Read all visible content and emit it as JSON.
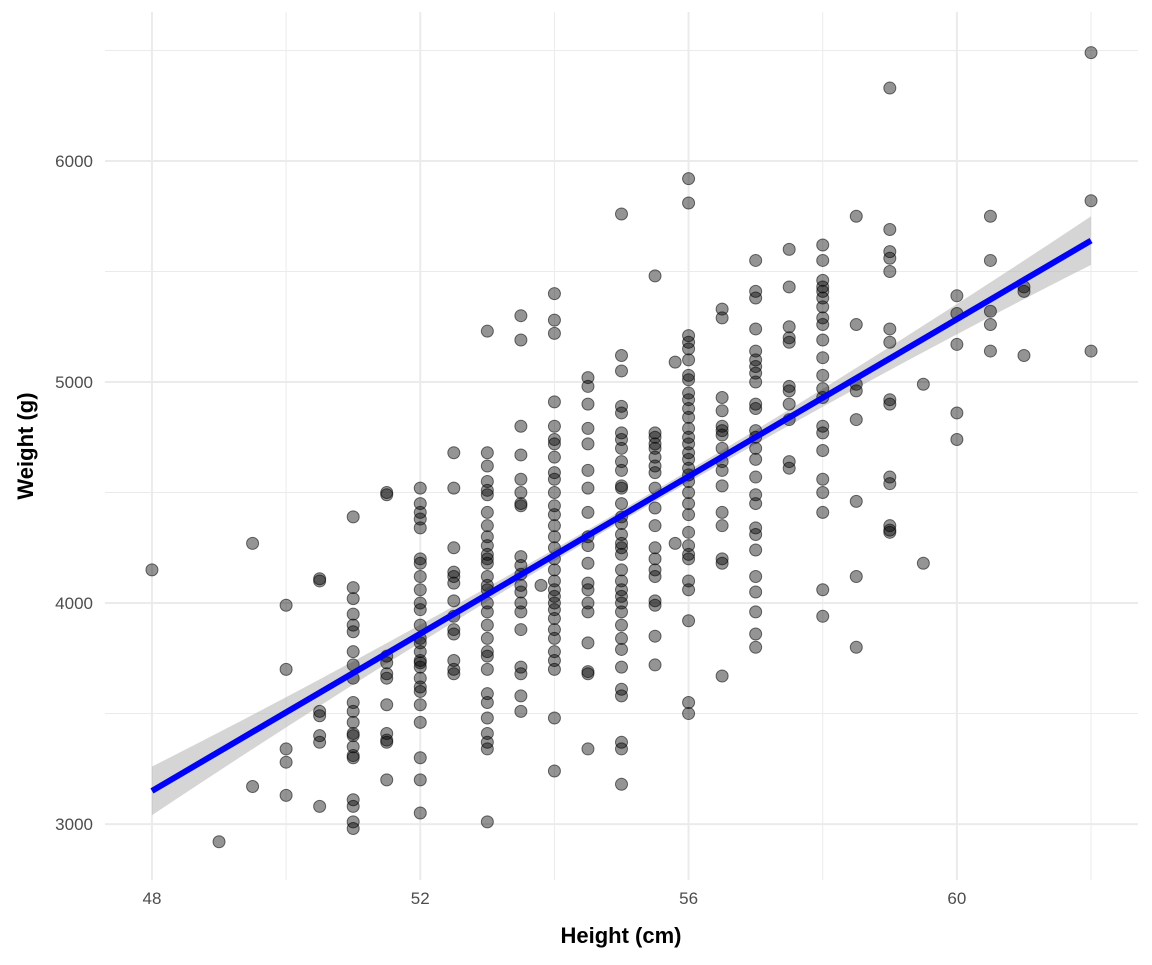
{
  "chart_data": {
    "type": "scatter",
    "title": "",
    "xlabel": "Height (cm)",
    "ylabel": "Weight (g)",
    "xlim": [
      47.3,
      62.7
    ],
    "ylim": [
      2747,
      6674
    ],
    "x_ticks": [
      48,
      52,
      56,
      60
    ],
    "x_tick_labels": [
      "48",
      "52",
      "56",
      "60"
    ],
    "x_minor": [
      50,
      54,
      58,
      62
    ],
    "y_ticks": [
      3000,
      4000,
      5000,
      6000
    ],
    "y_tick_labels": [
      "3000",
      "4000",
      "5000",
      "6000"
    ],
    "y_minor": [
      3500,
      4500,
      5500,
      6500
    ],
    "grid": true,
    "legend": "none",
    "colors": {
      "point_fill": "#000000",
      "fit_line": "#0000ff",
      "ci_band": "#b3b3b3",
      "grid": "#ebebeb"
    },
    "fit": {
      "method": "linear",
      "x": [
        48,
        62
      ],
      "y": [
        3150,
        5640
      ],
      "ci_halfwidth_at_ends": 110,
      "ci_halfwidth_at_center": 25,
      "x_center": 55
    },
    "columns": [
      {
        "x": 48,
        "y": [
          4150
        ]
      },
      {
        "x": 49,
        "y": [
          2920
        ]
      },
      {
        "x": 49.5,
        "y": [
          4270,
          3170
        ]
      },
      {
        "x": 50,
        "y": [
          3990,
          3700,
          3340,
          3280,
          3130
        ]
      },
      {
        "x": 50.5,
        "y": [
          4110,
          4100,
          3510,
          3490,
          3400,
          3370,
          3080
        ]
      },
      {
        "x": 51,
        "y": [
          4390,
          4070,
          4020,
          3950,
          3900,
          3870,
          3780,
          3720,
          3660,
          3550,
          3510,
          3460,
          3410,
          3400,
          3350,
          3310,
          3300,
          3110,
          3080,
          3010,
          2980
        ]
      },
      {
        "x": 51.5,
        "y": [
          4500,
          4490,
          3760,
          3730,
          3680,
          3660,
          3540,
          3410,
          3380,
          3370,
          3200
        ]
      },
      {
        "x": 52,
        "y": [
          4520,
          4450,
          4410,
          4380,
          4340,
          4200,
          4180,
          4120,
          4060,
          4000,
          3970,
          3900,
          3840,
          3820,
          3780,
          3740,
          3730,
          3710,
          3660,
          3620,
          3600,
          3540,
          3460,
          3300,
          3200,
          3050
        ]
      },
      {
        "x": 52.5,
        "y": [
          4680,
          4520,
          4250,
          4140,
          4120,
          4090,
          4010,
          3940,
          3880,
          3860,
          3740,
          3700,
          3680
        ]
      },
      {
        "x": 53,
        "y": [
          5230,
          4680,
          4620,
          4550,
          4510,
          4490,
          4410,
          4350,
          4300,
          4260,
          4220,
          4200,
          4180,
          4120,
          4080,
          4060,
          4000,
          3960,
          3900,
          3840,
          3780,
          3760,
          3700,
          3590,
          3550,
          3480,
          3410,
          3370,
          3340,
          3010
        ]
      },
      {
        "x": 53.5,
        "y": [
          5300,
          5190,
          4800,
          4670,
          4560,
          4500,
          4450,
          4440,
          4210,
          4170,
          4130,
          4080,
          4050,
          4000,
          3960,
          3880,
          3710,
          3680,
          3580,
          3510
        ]
      },
      {
        "x": 53.8,
        "y": [
          4080
        ]
      },
      {
        "x": 54,
        "y": [
          5400,
          5280,
          5220,
          4910,
          4800,
          4740,
          4720,
          4660,
          4590,
          4560,
          4500,
          4440,
          4400,
          4350,
          4300,
          4250,
          4200,
          4150,
          4100,
          4060,
          4030,
          4000,
          3970,
          3930,
          3880,
          3840,
          3780,
          3740,
          3700,
          3480,
          3240
        ]
      },
      {
        "x": 54.5,
        "y": [
          5020,
          4980,
          4900,
          4790,
          4720,
          4600,
          4520,
          4410,
          4300,
          4260,
          4180,
          4090,
          4060,
          4000,
          3960,
          3820,
          3690,
          3680,
          3340
        ]
      },
      {
        "x": 55,
        "y": [
          5760,
          5120,
          5050,
          4890,
          4860,
          4770,
          4740,
          4700,
          4640,
          4600,
          4530,
          4520,
          4450,
          4390,
          4360,
          4310,
          4270,
          4250,
          4220,
          4150,
          4100,
          4060,
          4030,
          4000,
          3960,
          3900,
          3840,
          3790,
          3710,
          3610,
          3580,
          3370,
          3340,
          3180
        ]
      },
      {
        "x": 55.5,
        "y": [
          5480,
          4770,
          4750,
          4720,
          4700,
          4660,
          4620,
          4590,
          4520,
          4430,
          4350,
          4250,
          4200,
          4150,
          4120,
          4010,
          3990,
          3850,
          3720
        ]
      },
      {
        "x": 55.8,
        "y": [
          5090,
          4270
        ]
      },
      {
        "x": 56,
        "y": [
          5920,
          5810,
          5210,
          5180,
          5150,
          5100,
          5030,
          5010,
          4950,
          4920,
          4880,
          4840,
          4790,
          4750,
          4720,
          4680,
          4650,
          4610,
          4580,
          4550,
          4500,
          4450,
          4400,
          4320,
          4260,
          4220,
          4200,
          4100,
          4060,
          3920,
          3550,
          3500
        ]
      },
      {
        "x": 56.5,
        "y": [
          5330,
          5290,
          4930,
          4870,
          4800,
          4780,
          4760,
          4700,
          4640,
          4600,
          4530,
          4410,
          4350,
          4200,
          4180,
          3670
        ]
      },
      {
        "x": 57,
        "y": [
          5550,
          5410,
          5380,
          5240,
          5140,
          5100,
          5070,
          5040,
          5000,
          4900,
          4880,
          4780,
          4750,
          4700,
          4650,
          4570,
          4490,
          4450,
          4340,
          4310,
          4240,
          4120,
          4050,
          3960,
          3860,
          3800
        ]
      },
      {
        "x": 57.5,
        "y": [
          5600,
          5430,
          5250,
          5200,
          5180,
          4980,
          4960,
          4900,
          4830,
          4640,
          4610
        ]
      },
      {
        "x": 58,
        "y": [
          5620,
          5550,
          5460,
          5430,
          5410,
          5380,
          5340,
          5290,
          5260,
          5190,
          5110,
          5030,
          4970,
          4930,
          4800,
          4770,
          4690,
          4560,
          4500,
          4410,
          4060,
          3940
        ]
      },
      {
        "x": 58.5,
        "y": [
          5750,
          5260,
          4990,
          4960,
          4830,
          4460,
          4120,
          3800
        ]
      },
      {
        "x": 59,
        "y": [
          6330,
          5690,
          5590,
          5560,
          5500,
          5240,
          5180,
          4920,
          4900,
          4570,
          4540,
          4350,
          4330,
          4320
        ]
      },
      {
        "x": 59.5,
        "y": [
          4990,
          4180
        ]
      },
      {
        "x": 60,
        "y": [
          5390,
          5310,
          5170,
          4860,
          4740
        ]
      },
      {
        "x": 60.5,
        "y": [
          5750,
          5550,
          5320,
          5260,
          5140
        ]
      },
      {
        "x": 61,
        "y": [
          5430,
          5410,
          5120
        ]
      },
      {
        "x": 62,
        "y": [
          6490,
          5820,
          5140
        ]
      }
    ]
  }
}
